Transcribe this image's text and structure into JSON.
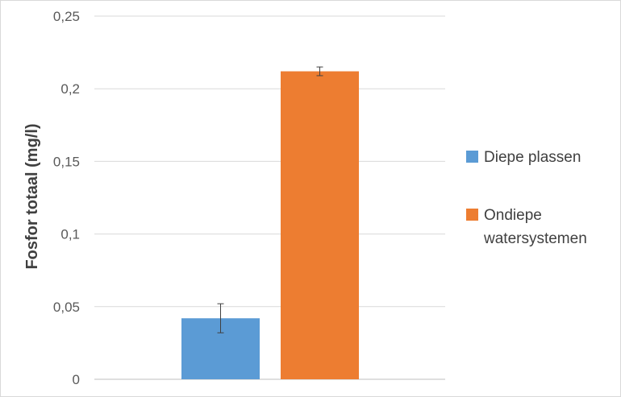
{
  "chart_data": {
    "type": "bar",
    "title": "",
    "xlabel": "",
    "ylabel": "Fosfor totaal (mg/l)",
    "ylim": [
      0,
      0.25
    ],
    "yticks": [
      {
        "value": 0,
        "label": "0"
      },
      {
        "value": 0.05,
        "label": "0,05"
      },
      {
        "value": 0.1,
        "label": "0,1"
      },
      {
        "value": 0.15,
        "label": "0,15"
      },
      {
        "value": 0.2,
        "label": "0,2"
      },
      {
        "value": 0.25,
        "label": "0,25"
      }
    ],
    "grid": true,
    "legend_position": "right",
    "series": [
      {
        "name": "Diepe plassen",
        "value": 0.042,
        "error": 0.01,
        "color": "#5b9bd5"
      },
      {
        "name": "Ondiepe watersystemen",
        "legend_lines": [
          "Ondiepe",
          "watersystemen"
        ],
        "value": 0.212,
        "error": 0.003,
        "color": "#ed7d31"
      }
    ]
  }
}
